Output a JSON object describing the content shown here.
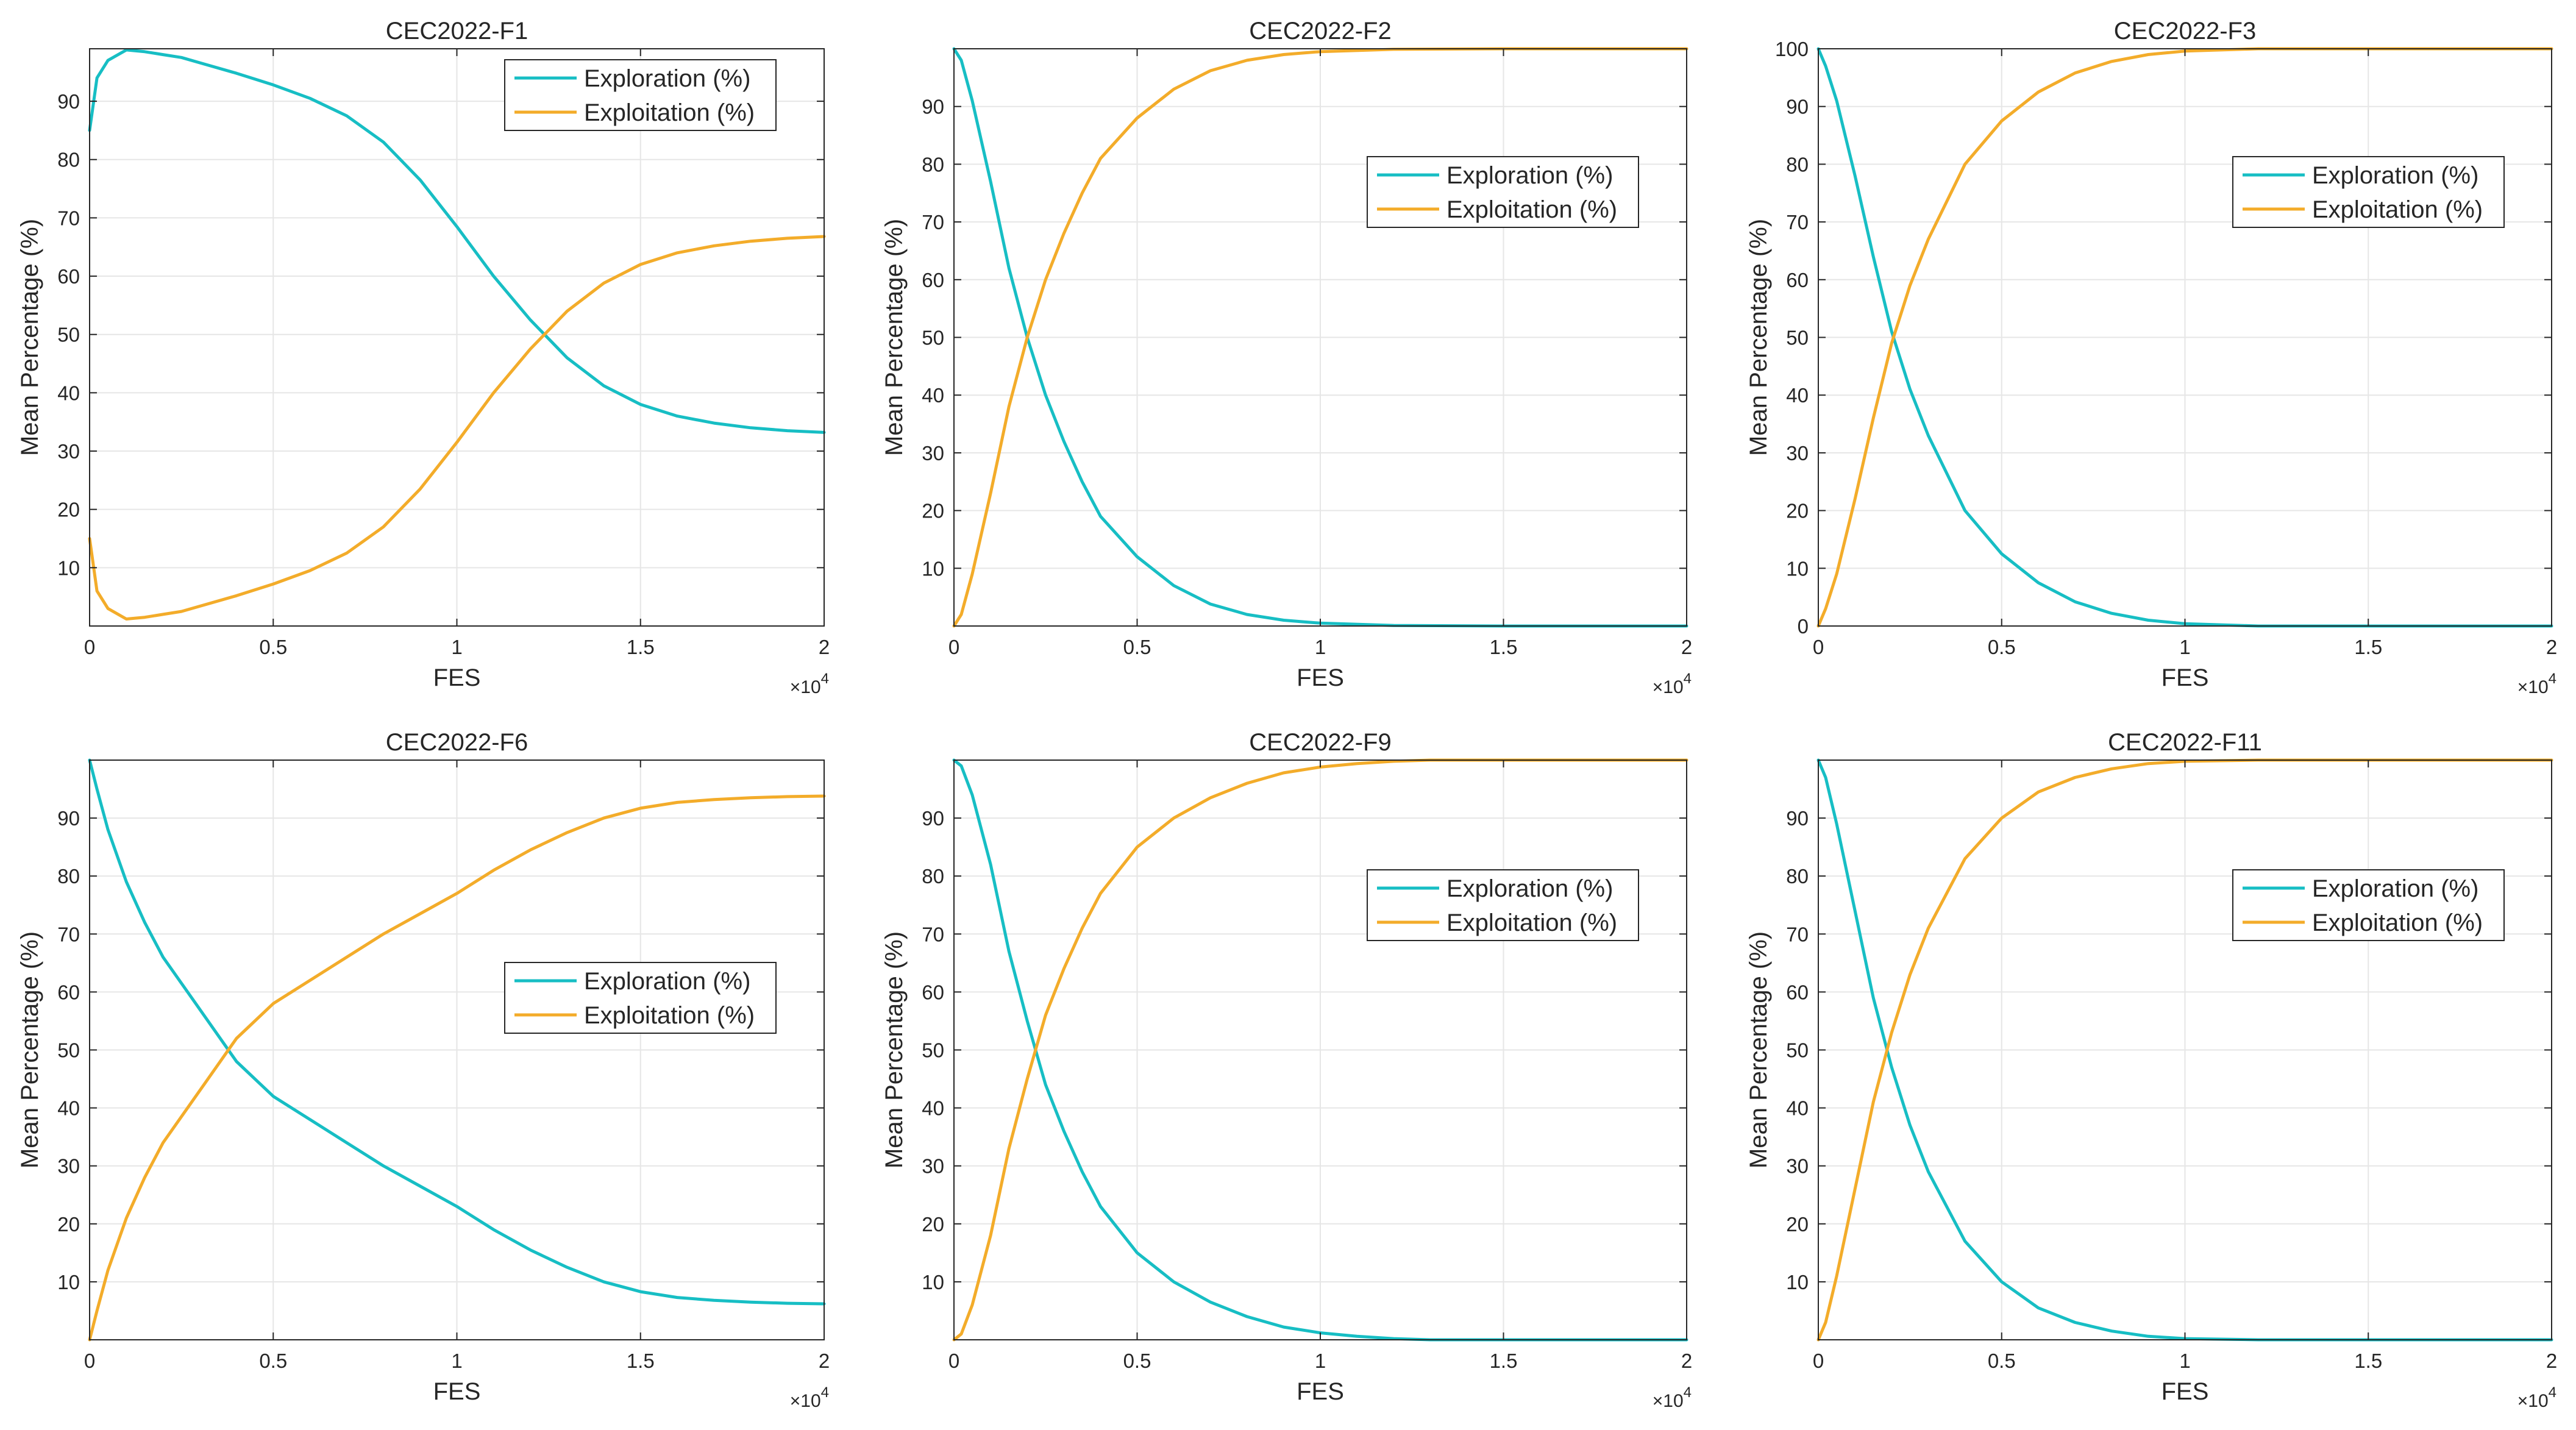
{
  "figure": {
    "colors": {
      "exploration": "#17BEC4",
      "exploitation": "#F3AC2A",
      "axis": "#262626",
      "grid": "#e6e6e6"
    },
    "x_exponent": {
      "base": "×10",
      "power": "4"
    }
  },
  "chart_data": [
    {
      "type": "line",
      "title": "CEC2022-F1",
      "xlabel": "FES",
      "ylabel": "Mean Percentage (%)",
      "xlim": [
        0,
        2
      ],
      "ylim": [
        0,
        99
      ],
      "xticks": [
        "0",
        "0.5",
        "1",
        "1.5",
        "2"
      ],
      "yticks": [
        "10",
        "20",
        "30",
        "40",
        "50",
        "60",
        "70",
        "80",
        "90"
      ],
      "legend_location": "top-right",
      "series": [
        {
          "name": "Exploration (%)",
          "x": [
            0,
            0.02,
            0.05,
            0.1,
            0.15,
            0.2,
            0.25,
            0.3,
            0.4,
            0.5,
            0.6,
            0.7,
            0.8,
            0.9,
            1.0,
            1.1,
            1.2,
            1.3,
            1.4,
            1.5,
            1.6,
            1.7,
            1.8,
            1.9,
            2.0
          ],
          "values": [
            85,
            94,
            97,
            98.8,
            98.5,
            98.0,
            97.5,
            96.6,
            94.8,
            92.8,
            90.5,
            87.5,
            83.0,
            76.5,
            68.5,
            60.0,
            52.5,
            46.0,
            41.2,
            38.0,
            36.0,
            34.8,
            34.0,
            33.5,
            33.2
          ]
        },
        {
          "name": "Exploitation (%)",
          "x": [
            0,
            0.02,
            0.05,
            0.1,
            0.15,
            0.2,
            0.25,
            0.3,
            0.4,
            0.5,
            0.6,
            0.7,
            0.8,
            0.9,
            1.0,
            1.1,
            1.2,
            1.3,
            1.4,
            1.5,
            1.6,
            1.7,
            1.8,
            1.9,
            2.0
          ],
          "values": [
            15,
            6,
            3,
            1.2,
            1.5,
            2.0,
            2.5,
            3.4,
            5.2,
            7.2,
            9.5,
            12.5,
            17.0,
            23.5,
            31.5,
            40.0,
            47.5,
            54.0,
            58.8,
            62.0,
            64.0,
            65.2,
            66.0,
            66.5,
            66.8
          ]
        }
      ]
    },
    {
      "type": "line",
      "title": "CEC2022-F2",
      "xlabel": "FES",
      "ylabel": "Mean Percentage (%)",
      "xlim": [
        0,
        2
      ],
      "ylim": [
        0,
        100
      ],
      "xticks": [
        "0",
        "0.5",
        "1",
        "1.5",
        "2"
      ],
      "yticks": [
        "10",
        "20",
        "30",
        "40",
        "50",
        "60",
        "70",
        "80",
        "90"
      ],
      "legend_location": "center-right",
      "series": [
        {
          "name": "Exploration (%)",
          "x": [
            0,
            0.02,
            0.05,
            0.1,
            0.15,
            0.2,
            0.25,
            0.3,
            0.35,
            0.4,
            0.5,
            0.6,
            0.7,
            0.8,
            0.9,
            1.0,
            1.2,
            1.5,
            2.0
          ],
          "values": [
            100,
            98,
            91,
            77,
            62,
            50,
            40,
            32,
            25,
            19,
            12,
            7,
            3.8,
            2.0,
            1.0,
            0.5,
            0.1,
            0,
            0
          ]
        },
        {
          "name": "Exploitation (%)",
          "x": [
            0,
            0.02,
            0.05,
            0.1,
            0.15,
            0.2,
            0.25,
            0.3,
            0.35,
            0.4,
            0.5,
            0.6,
            0.7,
            0.8,
            0.9,
            1.0,
            1.2,
            1.5,
            2.0
          ],
          "values": [
            0,
            2,
            9,
            23,
            38,
            50,
            60,
            68,
            75,
            81,
            88,
            93,
            96.2,
            98.0,
            99.0,
            99.5,
            99.9,
            100,
            100
          ]
        }
      ]
    },
    {
      "type": "line",
      "title": "CEC2022-F3",
      "xlabel": "FES",
      "ylabel": "Mean Percentage (%)",
      "xlim": [
        0,
        2
      ],
      "ylim": [
        0,
        100
      ],
      "xticks": [
        "0",
        "0.5",
        "1",
        "1.5",
        "2"
      ],
      "yticks": [
        "0",
        "10",
        "20",
        "30",
        "40",
        "50",
        "60",
        "70",
        "80",
        "90",
        "100"
      ],
      "legend_location": "top-right",
      "series": [
        {
          "name": "Exploration (%)",
          "x": [
            0,
            0.02,
            0.05,
            0.1,
            0.15,
            0.2,
            0.25,
            0.3,
            0.4,
            0.5,
            0.6,
            0.7,
            0.8,
            0.9,
            1.0,
            1.2,
            1.5,
            2.0
          ],
          "values": [
            100,
            97,
            91,
            78,
            64,
            51,
            41,
            33,
            20,
            12.5,
            7.5,
            4.2,
            2.2,
            1.0,
            0.4,
            0,
            0,
            0
          ]
        },
        {
          "name": "Exploitation (%)",
          "x": [
            0,
            0.02,
            0.05,
            0.1,
            0.15,
            0.2,
            0.25,
            0.3,
            0.4,
            0.5,
            0.6,
            0.7,
            0.8,
            0.9,
            1.0,
            1.2,
            1.5,
            2.0
          ],
          "values": [
            0,
            3,
            9,
            22,
            36,
            49,
            59,
            67,
            80,
            87.5,
            92.5,
            95.8,
            97.8,
            99.0,
            99.6,
            100,
            100,
            100
          ]
        }
      ]
    },
    {
      "type": "line",
      "title": "CEC2022-F6",
      "xlabel": "FES",
      "ylabel": "Mean Percentage (%)",
      "xlim": [
        0,
        2
      ],
      "ylim": [
        0,
        100
      ],
      "xticks": [
        "0",
        "0.5",
        "1",
        "1.5",
        "2"
      ],
      "yticks": [
        "10",
        "20",
        "30",
        "40",
        "50",
        "60",
        "70",
        "80",
        "90"
      ],
      "legend_location": "center-right",
      "series": [
        {
          "name": "Exploration (%)",
          "x": [
            0,
            0.02,
            0.05,
            0.1,
            0.15,
            0.2,
            0.3,
            0.4,
            0.5,
            0.6,
            0.7,
            0.8,
            0.9,
            1.0,
            1.1,
            1.2,
            1.3,
            1.4,
            1.5,
            1.6,
            1.7,
            1.8,
            1.9,
            2.0
          ],
          "values": [
            100,
            95,
            88,
            79,
            72,
            66,
            57,
            48,
            42,
            38,
            34,
            30,
            26.5,
            23,
            19,
            15.5,
            12.5,
            10,
            8.3,
            7.3,
            6.8,
            6.5,
            6.3,
            6.2
          ]
        },
        {
          "name": "Exploitation (%)",
          "x": [
            0,
            0.02,
            0.05,
            0.1,
            0.15,
            0.2,
            0.3,
            0.4,
            0.5,
            0.6,
            0.7,
            0.8,
            0.9,
            1.0,
            1.1,
            1.2,
            1.3,
            1.4,
            1.5,
            1.6,
            1.7,
            1.8,
            1.9,
            2.0
          ],
          "values": [
            0,
            5,
            12,
            21,
            28,
            34,
            43,
            52,
            58,
            62,
            66,
            70,
            73.5,
            77,
            81,
            84.5,
            87.5,
            90,
            91.7,
            92.7,
            93.2,
            93.5,
            93.7,
            93.8
          ]
        }
      ]
    },
    {
      "type": "line",
      "title": "CEC2022-F9",
      "xlabel": "FES",
      "ylabel": "Mean Percentage (%)",
      "xlim": [
        0,
        2
      ],
      "ylim": [
        0,
        100
      ],
      "xticks": [
        "0",
        "0.5",
        "1",
        "1.5",
        "2"
      ],
      "yticks": [
        "10",
        "20",
        "30",
        "40",
        "50",
        "60",
        "70",
        "80",
        "90"
      ],
      "legend_location": "center-right",
      "series": [
        {
          "name": "Exploration (%)",
          "x": [
            0,
            0.02,
            0.05,
            0.1,
            0.15,
            0.2,
            0.25,
            0.3,
            0.35,
            0.4,
            0.5,
            0.6,
            0.7,
            0.8,
            0.9,
            1.0,
            1.1,
            1.2,
            1.3,
            1.5,
            2.0
          ],
          "values": [
            100,
            99,
            94,
            82,
            67,
            55,
            44,
            36,
            29,
            23,
            15,
            10,
            6.5,
            4,
            2.2,
            1.2,
            0.6,
            0.2,
            0,
            0,
            0
          ]
        },
        {
          "name": "Exploitation (%)",
          "x": [
            0,
            0.02,
            0.05,
            0.1,
            0.15,
            0.2,
            0.25,
            0.3,
            0.35,
            0.4,
            0.5,
            0.6,
            0.7,
            0.8,
            0.9,
            1.0,
            1.1,
            1.2,
            1.3,
            1.5,
            2.0
          ],
          "values": [
            0,
            1,
            6,
            18,
            33,
            45,
            56,
            64,
            71,
            77,
            85,
            90,
            93.5,
            96,
            97.8,
            98.8,
            99.4,
            99.8,
            100,
            100,
            100
          ]
        }
      ]
    },
    {
      "type": "line",
      "title": "CEC2022-F11",
      "xlabel": "FES",
      "ylabel": "Mean Percentage (%)",
      "xlim": [
        0,
        2
      ],
      "ylim": [
        0,
        100
      ],
      "xticks": [
        "0",
        "0.5",
        "1",
        "1.5",
        "2"
      ],
      "yticks": [
        "10",
        "20",
        "30",
        "40",
        "50",
        "60",
        "70",
        "80",
        "90"
      ],
      "legend_location": "center-right",
      "series": [
        {
          "name": "Exploration (%)",
          "x": [
            0,
            0.02,
            0.05,
            0.1,
            0.15,
            0.2,
            0.25,
            0.3,
            0.4,
            0.5,
            0.6,
            0.7,
            0.8,
            0.9,
            1.0,
            1.2,
            1.5,
            2.0
          ],
          "values": [
            100,
            97,
            89,
            74,
            59,
            47,
            37,
            29,
            17,
            10,
            5.5,
            3,
            1.5,
            0.6,
            0.2,
            0,
            0,
            0
          ]
        },
        {
          "name": "Exploitation (%)",
          "x": [
            0,
            0.02,
            0.05,
            0.1,
            0.15,
            0.2,
            0.25,
            0.3,
            0.4,
            0.5,
            0.6,
            0.7,
            0.8,
            0.9,
            1.0,
            1.2,
            1.5,
            2.0
          ],
          "values": [
            0,
            3,
            11,
            26,
            41,
            53,
            63,
            71,
            83,
            90,
            94.5,
            97,
            98.5,
            99.4,
            99.8,
            100,
            100,
            100
          ]
        }
      ]
    }
  ]
}
